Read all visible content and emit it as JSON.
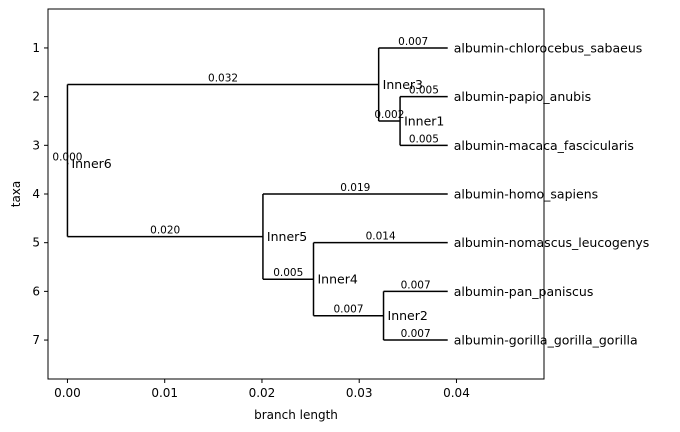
{
  "chart_data": {
    "type": "tree",
    "xlabel": "branch length",
    "ylabel": "taxa",
    "xlim": [
      -0.002,
      0.049
    ],
    "ylim": [
      7.8,
      0.2
    ],
    "x_ticks": [
      0.0,
      0.01,
      0.02,
      0.03,
      0.04
    ],
    "x_tick_labels": [
      "0.00",
      "0.01",
      "0.02",
      "0.03",
      "0.04"
    ],
    "y_ticks": [
      1,
      2,
      3,
      4,
      5,
      6,
      7
    ],
    "y_tick_labels": [
      "1",
      "2",
      "3",
      "4",
      "5",
      "6",
      "7"
    ],
    "nodes": [
      {
        "id": "Inner6",
        "label": "Inner6",
        "x": 0.0,
        "y": 3.375,
        "branch_label": "0.000"
      },
      {
        "id": "Inner3",
        "label": "Inner3",
        "x": 0.032,
        "y": 1.75,
        "parent": "Inner6",
        "branch_label": "0.032"
      },
      {
        "id": "Inner1",
        "label": "Inner1",
        "x": 0.0342,
        "y": 2.5,
        "parent": "Inner3",
        "branch_label": "0.002"
      },
      {
        "id": "Inner5",
        "label": "Inner5",
        "x": 0.0201,
        "y": 4.875,
        "parent": "Inner6",
        "branch_label": "0.020"
      },
      {
        "id": "Inner4",
        "label": "Inner4",
        "x": 0.0253,
        "y": 5.75,
        "parent": "Inner5",
        "branch_label": "0.005"
      },
      {
        "id": "Inner2",
        "label": "Inner2",
        "x": 0.0325,
        "y": 6.5,
        "parent": "Inner4",
        "branch_label": "0.007"
      }
    ],
    "leaves": [
      {
        "label": "albumin-chlorocebus_sabaeus",
        "x": 0.0391,
        "y": 1,
        "parent": "Inner3",
        "branch_label": "0.007"
      },
      {
        "label": "albumin-papio_anubis",
        "x": 0.0391,
        "y": 2,
        "parent": "Inner1",
        "branch_label": "0.005"
      },
      {
        "label": "albumin-macaca_fascicularis",
        "x": 0.0391,
        "y": 3,
        "parent": "Inner1",
        "branch_label": "0.005"
      },
      {
        "label": "albumin-homo_sapiens",
        "x": 0.0391,
        "y": 4,
        "parent": "Inner5",
        "branch_label": "0.019"
      },
      {
        "label": "albumin-nomascus_leucogenys",
        "x": 0.0391,
        "y": 5,
        "parent": "Inner4",
        "branch_label": "0.014"
      },
      {
        "label": "albumin-pan_paniscus",
        "x": 0.0391,
        "y": 6,
        "parent": "Inner2",
        "branch_label": "0.007"
      },
      {
        "label": "albumin-gorilla_gorilla_gorilla",
        "x": 0.0391,
        "y": 7,
        "parent": "Inner2",
        "branch_label": "0.007"
      }
    ]
  }
}
